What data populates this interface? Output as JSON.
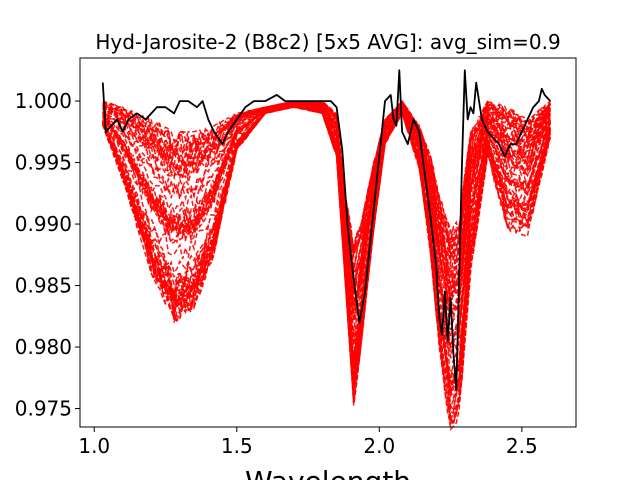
{
  "chart_data": {
    "type": "line",
    "title": "Hyd-Jarosite-2 (B8c2) [5x5 AVG]: avg_sim=0.9",
    "xlabel": "Wavelength",
    "ylabel": "",
    "xlim": [
      0.95,
      2.69
    ],
    "ylim": [
      0.9735,
      1.0035
    ],
    "xticks": [
      1.0,
      1.5,
      2.0,
      2.5
    ],
    "xtick_labels": [
      "1.0",
      "1.5",
      "2.0",
      "2.5"
    ],
    "yticks": [
      0.975,
      0.98,
      0.985,
      0.99,
      0.995,
      1.0
    ],
    "ytick_labels": [
      "0.975",
      "0.980",
      "0.985",
      "0.990",
      "0.995",
      "1.000"
    ],
    "grid": false,
    "legend": "none",
    "series": [
      {
        "role": "library-spectra",
        "style": "dashed",
        "color": "#ff0000",
        "count": 60,
        "envelope_x": [
          1.03,
          1.1,
          1.2,
          1.28,
          1.35,
          1.42,
          1.5,
          1.6,
          1.7,
          1.8,
          1.85,
          1.88,
          1.91,
          1.94,
          1.98,
          2.02,
          2.08,
          2.14,
          2.18,
          2.21,
          2.25,
          2.28,
          2.32,
          2.38,
          2.45,
          2.52,
          2.6
        ],
        "envelope_upper": [
          1.0,
          0.9995,
          0.9985,
          0.9975,
          0.9975,
          0.998,
          0.999,
          0.9995,
          1.0,
          1.0,
          0.999,
          0.9925,
          0.9885,
          0.9905,
          0.995,
          0.9985,
          1.0,
          0.998,
          0.9955,
          0.9925,
          0.9895,
          0.9905,
          0.9975,
          1.0,
          0.9995,
          0.9985,
          1.0
        ],
        "envelope_lower": [
          0.998,
          0.9935,
          0.986,
          0.982,
          0.983,
          0.9875,
          0.996,
          0.999,
          0.9995,
          0.999,
          0.9955,
          0.9855,
          0.975,
          0.981,
          0.9895,
          0.9965,
          0.999,
          0.9945,
          0.9875,
          0.98,
          0.9725,
          0.9745,
          0.986,
          0.9955,
          0.9895,
          0.989,
          0.997
        ]
      },
      {
        "role": "observed-spectrum",
        "style": "solid",
        "color": "#000000",
        "x": [
          1.03,
          1.04,
          1.06,
          1.08,
          1.1,
          1.12,
          1.15,
          1.18,
          1.2,
          1.22,
          1.25,
          1.28,
          1.3,
          1.33,
          1.36,
          1.38,
          1.4,
          1.42,
          1.45,
          1.47,
          1.5,
          1.53,
          1.56,
          1.6,
          1.64,
          1.67,
          1.7,
          1.73,
          1.76,
          1.8,
          1.83,
          1.85,
          1.87,
          1.89,
          1.91,
          1.93,
          1.95,
          1.97,
          2.0,
          2.02,
          2.04,
          2.05,
          2.06,
          2.07,
          2.08,
          2.1,
          2.12,
          2.14,
          2.16,
          2.18,
          2.19,
          2.2,
          2.21,
          2.22,
          2.23,
          2.24,
          2.25,
          2.26,
          2.27,
          2.28,
          2.29,
          2.3,
          2.31,
          2.32,
          2.33,
          2.34,
          2.36,
          2.38,
          2.4,
          2.42,
          2.44,
          2.46,
          2.48,
          2.5,
          2.52,
          2.54,
          2.56,
          2.57,
          2.58,
          2.6
        ],
        "y": [
          1.0015,
          0.9975,
          0.998,
          0.9985,
          0.9975,
          0.9985,
          0.999,
          0.9985,
          0.999,
          0.9995,
          0.9995,
          0.999,
          1.0,
          1.0,
          0.9995,
          1.0,
          0.9985,
          0.9975,
          0.9965,
          0.9975,
          0.9985,
          0.9995,
          1.0,
          1.0,
          1.0005,
          1.0,
          1.0,
          1.0,
          1.0,
          1.0,
          1.0,
          0.9995,
          0.996,
          0.9895,
          0.9855,
          0.982,
          0.9845,
          0.989,
          0.9955,
          1.0,
          1.0005,
          0.9985,
          0.998,
          1.0025,
          0.9975,
          0.9965,
          0.9985,
          0.9975,
          0.994,
          0.9905,
          0.9885,
          0.9865,
          0.9825,
          0.981,
          0.9845,
          0.9805,
          0.984,
          0.9795,
          0.9765,
          0.9855,
          0.995,
          1.0025,
          0.9985,
          0.9995,
          0.999,
          1.0015,
          0.9985,
          0.9975,
          0.997,
          0.9965,
          0.9955,
          0.9965,
          0.9965,
          0.9975,
          0.9985,
          0.9995,
          1.0,
          1.001,
          1.0005,
          1.0
        ]
      }
    ]
  }
}
